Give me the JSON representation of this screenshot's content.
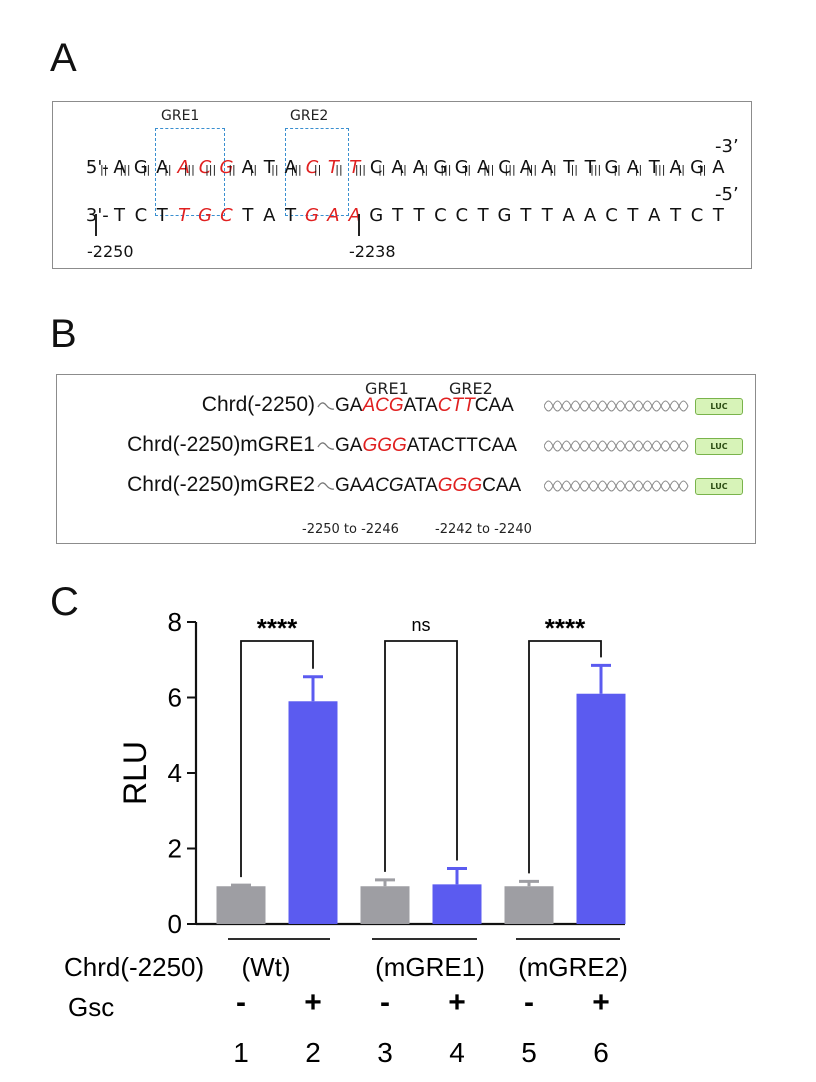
{
  "panels": {
    "a": "A",
    "b": "B",
    "c": "C"
  },
  "panel_a": {
    "gre1_label": "GRE1",
    "gre2_label": "GRE2",
    "top_prefix": "5'-",
    "top_suffix": "-3’",
    "bottom_prefix": "3'-",
    "bottom_suffix": "-5’",
    "top_seq": [
      "A",
      "G",
      "A",
      "A",
      "C",
      "G",
      "A",
      "T",
      "A",
      "C",
      "T",
      "T",
      "C",
      "A",
      "A",
      "G",
      "G",
      "A",
      "C",
      "A",
      "A",
      "T",
      "T",
      "G",
      "A",
      "T",
      "A",
      "G",
      "A"
    ],
    "bottom_seq": [
      "T",
      "C",
      "T",
      "T",
      "G",
      "C",
      "T",
      "A",
      "T",
      "G",
      "A",
      "A",
      "G",
      "T",
      "T",
      "C",
      "C",
      "T",
      "G",
      "T",
      "T",
      "A",
      "A",
      "C",
      "T",
      "A",
      "T",
      "C",
      "T"
    ],
    "highlight_idx": [
      3,
      4,
      5,
      9,
      10,
      11
    ],
    "bonds": [
      "||",
      "|||",
      "||",
      "||",
      "|||",
      "|||",
      "||",
      "||",
      "||",
      "|||",
      "||",
      "||",
      "|||",
      "||",
      "||",
      "||",
      "|||",
      "||",
      "|||",
      "|||",
      "|||",
      "||",
      "||",
      "|||",
      "||",
      "||",
      "|||",
      "||",
      "||"
    ],
    "pos_left": "-2250",
    "pos_right": "-2238"
  },
  "panel_b": {
    "gre1_label": "GRE1",
    "gre2_label": "GRE2",
    "luc_label": "LUC",
    "constructs": [
      {
        "name": "Chrd(-2250)",
        "parts": [
          [
            "GA",
            false
          ],
          [
            "ACG",
            true
          ],
          [
            "ATA",
            false
          ],
          [
            "CTT",
            true
          ],
          [
            "CAA",
            false
          ]
        ]
      },
      {
        "name": "Chrd(-2250)mGRE1",
        "parts": [
          [
            "GA",
            false
          ],
          [
            "GGG",
            true
          ],
          [
            "ATACTTCAA",
            false
          ]
        ]
      },
      {
        "name": "Chrd(-2250)mGRE2",
        "parts": [
          [
            "GA",
            false
          ],
          [
            "ACG",
            "italic"
          ],
          [
            "ATA",
            false
          ],
          [
            "GGG",
            true
          ],
          [
            "CAA",
            false
          ]
        ]
      }
    ],
    "range1": "-2250 to -2246",
    "range2": "-2242 to -2240"
  },
  "chart_data": {
    "type": "bar",
    "ylabel": "RLU",
    "ylim": [
      0,
      8
    ],
    "yticks": [
      "0",
      "2",
      "4",
      "6",
      "8"
    ],
    "categories": [
      "1",
      "2",
      "3",
      "4",
      "5",
      "6"
    ],
    "values": [
      1.0,
      5.9,
      1.0,
      1.05,
      1.0,
      6.1
    ],
    "errors": [
      0.03,
      0.65,
      0.17,
      0.42,
      0.13,
      0.75
    ],
    "bar_colors": [
      "#9e9ea3",
      "#5b5bf0",
      "#9e9ea3",
      "#5b5bf0",
      "#9e9ea3",
      "#5b5bf0"
    ],
    "significance": [
      {
        "pair": [
          1,
          2
        ],
        "label": "****"
      },
      {
        "pair": [
          3,
          4
        ],
        "label": "ns"
      },
      {
        "pair": [
          5,
          6
        ],
        "label": "****"
      }
    ],
    "row_label_construct": "Chrd(-2250)",
    "group_labels": [
      "(Wt)",
      "(mGRE1)",
      "(mGRE2)"
    ],
    "row_label_gsc": "Gsc",
    "gsc_signs": [
      "-",
      "+",
      "-",
      "+",
      "-",
      "+"
    ]
  }
}
